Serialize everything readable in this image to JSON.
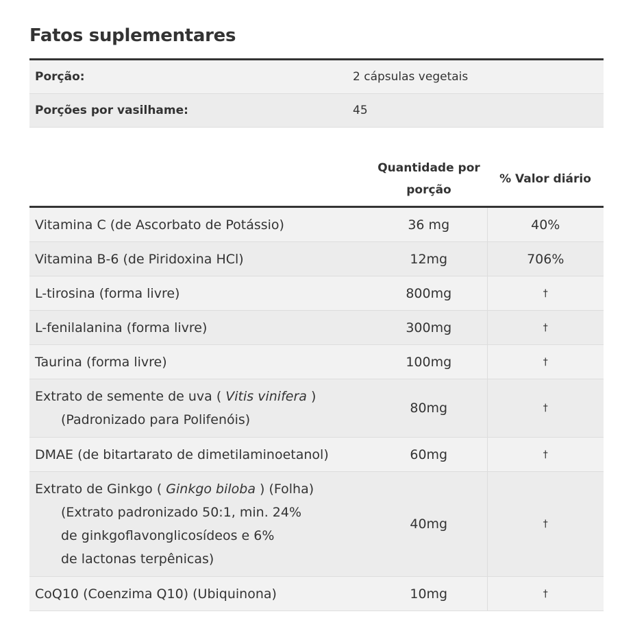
{
  "title": "Fatos suplementares",
  "serving": [
    {
      "label": "Porção:",
      "value": "2 cápsulas vegetais"
    },
    {
      "label": "Porções por vasilhame:",
      "value": "45"
    }
  ],
  "headers": {
    "amount": "Quantidade por porção",
    "dv": "% Valor diário"
  },
  "rows": [
    {
      "name": "Vitamina C  (de Ascorbato de Potássio)",
      "amount": "36 mg",
      "dv": "40%"
    },
    {
      "name": "Vitamina B-6 (de Piridoxina HCl)",
      "amount": "12mg",
      "dv": "706%"
    },
    {
      "name": "L-tirosina (forma livre)",
      "amount": "800mg",
      "dv": "†"
    },
    {
      "name": "L-fenilalanina (forma livre)",
      "amount": "300mg",
      "dv": "†"
    },
    {
      "name": "Taurina (forma livre)",
      "amount": "100mg",
      "dv": "†"
    },
    {
      "name_pre": "Extrato de semente de uva ( ",
      "name_italic": "Vitis vinifera",
      "name_post": " )",
      "sub": [
        "(Padronizado para Polifenóis)"
      ],
      "amount": "80mg",
      "dv": "†"
    },
    {
      "name": "DMAE (de bitartarato de dimetilaminoetanol)",
      "amount": "60mg",
      "dv": "†"
    },
    {
      "name_pre": "Extrato de Ginkgo ( ",
      "name_italic": "Ginkgo biloba",
      "name_post": " ) (Folha)",
      "sub": [
        "(Extrato padronizado 50:1, min. 24%",
        "de ginkgoflavonglicosídeos e 6%",
        "de lactonas terpênicas)"
      ],
      "amount": "40mg",
      "dv": "†"
    },
    {
      "name": "CoQ10 (Coenzima Q10) (Ubiquinona)",
      "amount": "10mg",
      "dv": "†"
    }
  ]
}
